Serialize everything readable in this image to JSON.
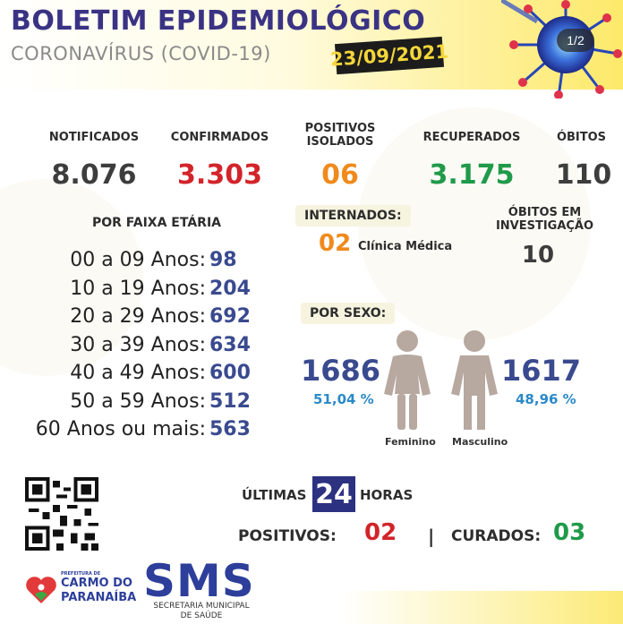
{
  "header": {
    "title": "BOLETIM EPIDEMIOLÓGICO",
    "subtitle": "CORONAVÍRUS (COVID-19)",
    "date": "23/09/2021",
    "page_indicator": "1/2"
  },
  "stats": {
    "notificados": {
      "label": "NOTIFICADOS",
      "value": "8.076",
      "color": "#3d3d3d"
    },
    "confirmados": {
      "label": "CONFIRMADOS",
      "value": "3.303",
      "color": "#d2242a"
    },
    "positivos_isolados": {
      "label_line1": "POSITIVOS",
      "label_line2": "ISOLADOS",
      "value": "06",
      "color": "#f08a1c"
    },
    "recuperados": {
      "label": "RECUPERADOS",
      "value": "3.175",
      "color": "#1f9a4a"
    },
    "obitos": {
      "label": "ÓBITOS",
      "value": "110",
      "color": "#3d3d3d"
    }
  },
  "age": {
    "title": "POR FAIXA ETÁRIA",
    "rows": [
      {
        "label": "00 a 09 Anos:",
        "value": "98"
      },
      {
        "label": "10 a 19 Anos:",
        "value": "204"
      },
      {
        "label": "20 a 29 Anos:",
        "value": "692"
      },
      {
        "label": "30 a 39 Anos:",
        "value": "634"
      },
      {
        "label": "40 a 49 Anos:",
        "value": "600"
      },
      {
        "label": "50 a 59 Anos:",
        "value": "512"
      },
      {
        "label": "60 Anos ou mais:",
        "value": "563"
      }
    ]
  },
  "internados": {
    "label": "INTERNADOS:",
    "value": "02",
    "detail": "Clínica Médica",
    "color": "#f08a1c"
  },
  "obitos_investigacao": {
    "label_line1": "ÓBITOS EM",
    "label_line2": "INVESTIGAÇÃO",
    "value": "10"
  },
  "sex": {
    "label": "POR SEXO:",
    "female": {
      "count": "1686",
      "percent": "51,04 %",
      "caption": "Feminino"
    },
    "male": {
      "count": "1617",
      "percent": "48,96 %",
      "caption": "Masculino"
    }
  },
  "last24": {
    "prefix": "ÚLTIMAS",
    "number": "24",
    "suffix": "HORAS",
    "positivos_label": "POSITIVOS:",
    "positivos_value": "02",
    "separator": "|",
    "curados_label": "CURADOS:",
    "curados_value": "03"
  },
  "footer": {
    "carmo_small": "PREFEITURA DE",
    "carmo_line1": "CARMO DO",
    "carmo_line2": "PARANAÍBA",
    "sms": "SMS",
    "sms_sub_line1": "SECRETARIA MUNICIPAL",
    "sms_sub_line2": "DE SAÚDE"
  },
  "icons": [
    "virus-illustration",
    "female-figure-icon",
    "male-figure-icon",
    "qr-code",
    "heart-logo-icon"
  ]
}
